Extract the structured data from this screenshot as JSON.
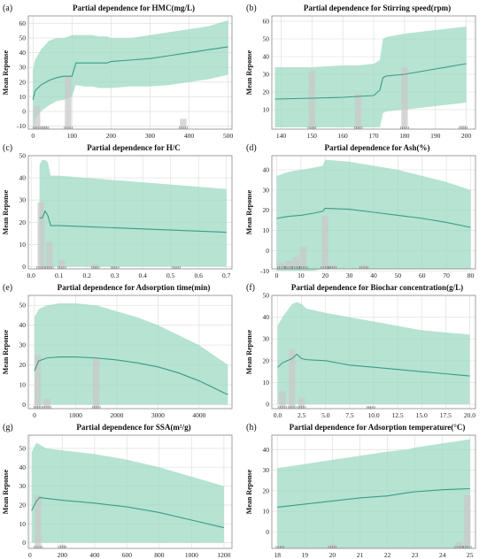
{
  "figure": {
    "panels": [
      {
        "letter": "(a)",
        "title": "Partial dependence for HMC(mg/L)"
      },
      {
        "letter": "(b)",
        "title": "Partial dependence for Stirring speed(rpm)"
      },
      {
        "letter": "(c)",
        "title": "Partial dependence for H/C"
      },
      {
        "letter": "(d)",
        "title": "Partial dependence for Ash(%)"
      },
      {
        "letter": "(e)",
        "title": "Partial dependence for Adsorption time(min)"
      },
      {
        "letter": "(f)",
        "title": "Partial dependence for Biochar concentration(g/L)"
      },
      {
        "letter": "(g)",
        "title": "Partial dependence for SSA(m²/g)"
      },
      {
        "letter": "(h)",
        "title": "Partial dependence for Adsorption temperature(°C)"
      }
    ],
    "y_axis_label": "Mean Reponse",
    "colors": {
      "band": "#9ed9c3",
      "line": "#3a9c88",
      "bar": "#c9c9c9",
      "bar_dark": "#b9b9b9",
      "grid": "#e4e4e4"
    }
  },
  "chart_data": [
    {
      "type": "line",
      "title": "Partial dependence for HMC(mg/L)",
      "ylabel": "Mean Reponse",
      "xlim": [
        -12,
        510
      ],
      "ylim": [
        -12,
        65
      ],
      "xticks": [
        "0",
        "100",
        "200",
        "300",
        "400",
        "500"
      ],
      "yticks": [
        "-10",
        "0",
        "10",
        "20",
        "30",
        "40",
        "50",
        "60"
      ],
      "x": [
        0,
        5,
        20,
        40,
        60,
        80,
        100,
        110,
        130,
        150,
        170,
        190,
        200,
        250,
        300,
        350,
        400,
        450,
        500
      ],
      "y": [
        8,
        14,
        18,
        21,
        23,
        24,
        24,
        33,
        33,
        33,
        33,
        33,
        34,
        35,
        36,
        38,
        40,
        42,
        44
      ],
      "lower": [
        -12,
        -5,
        0,
        4,
        7,
        8,
        10,
        18,
        17,
        17,
        16,
        16,
        16,
        17,
        17,
        18,
        20,
        22,
        25
      ],
      "upper": [
        28,
        35,
        42,
        48,
        50,
        50,
        52,
        52,
        52,
        52,
        51,
        51,
        50,
        50,
        52,
        54,
        56,
        58,
        62
      ],
      "bars": [
        {
          "x": 10,
          "h": 16
        },
        {
          "x": 30,
          "h": 2
        },
        {
          "x": 90,
          "h": 36
        },
        {
          "x": 385,
          "h": 7
        }
      ]
    },
    {
      "type": "line",
      "title": "Partial dependence for Stirring speed(rpm)",
      "ylabel": "Mean Reponse",
      "xlim": [
        137,
        203
      ],
      "ylim": [
        -1,
        63
      ],
      "xticks": [
        "140",
        "150",
        "160",
        "170",
        "180",
        "190",
        "200"
      ],
      "yticks": [
        "10",
        "20",
        "30",
        "40",
        "50",
        "60"
      ],
      "x": [
        138,
        150,
        160,
        165,
        170,
        172,
        173,
        174,
        180,
        190,
        200
      ],
      "y": [
        16,
        16.5,
        17,
        17.5,
        18,
        21,
        28,
        29,
        30,
        33,
        36
      ],
      "lower": [
        0,
        0,
        0,
        0,
        0,
        0,
        8,
        9,
        10,
        12,
        14
      ],
      "upper": [
        34,
        34,
        35,
        35,
        36,
        38,
        50,
        51,
        53,
        55,
        57
      ],
      "bars": [
        {
          "x": 150,
          "h": 33
        },
        {
          "x": 165,
          "h": 20
        },
        {
          "x": 180,
          "h": 35
        },
        {
          "x": 199,
          "h": 2
        }
      ]
    },
    {
      "type": "line",
      "title": "Partial dependence for H/C",
      "ylabel": "Mean Reponse",
      "xlim": [
        -0.01,
        0.72
      ],
      "ylim": [
        -1,
        50
      ],
      "xticks": [
        "0.0",
        "0.1",
        "0.2",
        "0.3",
        "0.4",
        "0.5",
        "0.6",
        "0.7"
      ],
      "yticks": [
        "0",
        "10",
        "20",
        "30",
        "40",
        "50"
      ],
      "x": [
        0.03,
        0.04,
        0.05,
        0.06,
        0.07,
        0.1,
        0.2,
        0.3,
        0.4,
        0.5,
        0.6,
        0.7
      ],
      "y": [
        22,
        22,
        25,
        23,
        18.5,
        18.5,
        18,
        17.5,
        17,
        16.5,
        16,
        15.5
      ],
      "lower": [
        0,
        0,
        0,
        0,
        0,
        0,
        0,
        0,
        0,
        0,
        0,
        0
      ],
      "upper": [
        46,
        48,
        48,
        47,
        41,
        41,
        40,
        39,
        38,
        37,
        36,
        35
      ],
      "bars": [
        {
          "x": 0.035,
          "h": 30
        },
        {
          "x": 0.065,
          "h": 12
        },
        {
          "x": 0.11,
          "h": 4
        },
        {
          "x": 0.23,
          "h": 2
        },
        {
          "x": 0.3,
          "h": 1
        },
        {
          "x": 0.52,
          "h": 1
        }
      ]
    },
    {
      "type": "line",
      "title": "Partial dependence for Ash(%)",
      "ylabel": "Mean Reponse",
      "xlim": [
        -2,
        82
      ],
      "ylim": [
        -9,
        47
      ],
      "xticks": [
        "0",
        "10",
        "20",
        "30",
        "40",
        "50",
        "60",
        "70",
        "80"
      ],
      "yticks": [
        "-10",
        "0",
        "10",
        "20",
        "30",
        "40"
      ],
      "x": [
        0,
        5,
        10,
        15,
        19,
        20,
        30,
        40,
        50,
        60,
        70,
        80
      ],
      "y": [
        16,
        17,
        17.5,
        18.5,
        19.5,
        21,
        20.5,
        19,
        17.5,
        16,
        14,
        11.5
      ],
      "lower": [
        -10,
        -10,
        -10,
        -10,
        -9,
        -9,
        -9,
        -9,
        -9,
        -9,
        -9,
        -9
      ],
      "upper": [
        37,
        39,
        40,
        41,
        42,
        45,
        44,
        42,
        40,
        37,
        34,
        30
      ],
      "bars": [
        {
          "x": 2,
          "h": 3
        },
        {
          "x": 5,
          "h": 4
        },
        {
          "x": 8,
          "h": 6
        },
        {
          "x": 11,
          "h": 11
        },
        {
          "x": 20,
          "h": 26
        },
        {
          "x": 23,
          "h": 2
        },
        {
          "x": 36,
          "h": 2
        }
      ]
    },
    {
      "type": "line",
      "title": "Partial dependence for Adsorption time(min)",
      "ylabel": "Mean Reponse",
      "xlim": [
        -150,
        4800
      ],
      "ylim": [
        -2,
        55
      ],
      "xticks": [
        "0",
        "1000",
        "2000",
        "3000",
        "4000"
      ],
      "yticks": [
        "0",
        "10",
        "20",
        "30",
        "40",
        "50"
      ],
      "x": [
        0,
        100,
        300,
        600,
        1000,
        1500,
        2000,
        2500,
        3000,
        3500,
        4000,
        4700
      ],
      "y": [
        17,
        22,
        23.5,
        24,
        24,
        23.5,
        22.5,
        21,
        19,
        16,
        12,
        5
      ],
      "lower": [
        0,
        0,
        0,
        0,
        0,
        0,
        0,
        0,
        0,
        0,
        0,
        0
      ],
      "upper": [
        44,
        48,
        50,
        51,
        51,
        50,
        47,
        44,
        40,
        35,
        30,
        20
      ],
      "bars": [
        {
          "x": 80,
          "h": 27
        },
        {
          "x": 300,
          "h": 5
        },
        {
          "x": 1500,
          "h": 26
        }
      ]
    },
    {
      "type": "line",
      "title": "Partial dependence for Biochar concentration(g/L)",
      "ylabel": "Mean Reponse",
      "xlim": [
        -0.6,
        20.6
      ],
      "ylim": [
        -2,
        50
      ],
      "xticks": [
        "0.0",
        "2.5",
        "5.0",
        "7.5",
        "10.0",
        "12.5",
        "15.0",
        "17.5",
        "20.0"
      ],
      "yticks": [
        "0",
        "10",
        "20",
        "30",
        "40",
        "50"
      ],
      "x": [
        0,
        0.5,
        1,
        1.5,
        2,
        2.5,
        3,
        5,
        7.5,
        10,
        12.5,
        15,
        17.5,
        20
      ],
      "y": [
        17,
        19,
        20,
        21,
        23,
        21,
        20.5,
        20,
        18,
        17,
        16,
        15,
        14,
        13
      ],
      "lower": [
        0,
        0,
        0,
        0,
        0,
        0,
        0,
        0,
        0,
        0,
        0,
        0,
        0,
        0
      ],
      "upper": [
        36,
        40,
        43,
        46,
        47,
        46,
        44,
        42,
        40,
        38,
        36,
        34,
        33,
        32
      ],
      "bars": [
        {
          "x": 0.5,
          "h": 8
        },
        {
          "x": 1.5,
          "h": 27
        },
        {
          "x": 2.5,
          "h": 5
        },
        {
          "x": 9.7,
          "h": 1
        }
      ]
    },
    {
      "type": "line",
      "title": "Partial dependence for SSA(m²/g)",
      "ylabel": "Mean Reponse",
      "xlim": [
        -10,
        1250
      ],
      "ylim": [
        -3,
        57
      ],
      "xticks": [
        "0",
        "200",
        "400",
        "600",
        "800",
        "1000",
        "1200"
      ],
      "yticks": [
        "0",
        "10",
        "20",
        "30",
        "40",
        "50"
      ],
      "x": [
        10,
        40,
        60,
        100,
        200,
        400,
        600,
        800,
        1000,
        1200
      ],
      "y": [
        17,
        22,
        24,
        23.5,
        22.5,
        21,
        19,
        16,
        12,
        8
      ],
      "lower": [
        0,
        0,
        0,
        0,
        0,
        0,
        0,
        0,
        0,
        0
      ],
      "upper": [
        48,
        53,
        52,
        50,
        49,
        47,
        44,
        40,
        35,
        30
      ],
      "bars": [
        {
          "x": 50,
          "h": 28
        },
        {
          "x": 200,
          "h": 2
        }
      ]
    },
    {
      "type": "line",
      "title": "Partial dependence for Adsorption temperature(°C)",
      "ylabel": "Mean Reponse",
      "xlim": [
        17.8,
        25.2
      ],
      "ylim": [
        -8,
        47
      ],
      "xticks": [
        "18",
        "19",
        "20",
        "21",
        "22",
        "23",
        "24",
        "25"
      ],
      "yticks": [
        "0",
        "10",
        "20",
        "30",
        "40"
      ],
      "x": [
        18,
        19,
        20,
        21,
        22,
        22.7,
        23,
        24,
        25
      ],
      "y": [
        12,
        13.5,
        15,
        16.5,
        17.5,
        19,
        19.5,
        20.5,
        21
      ],
      "lower": [
        -8,
        -8,
        -8,
        -8,
        -8,
        -8,
        -8,
        -8,
        -8
      ],
      "upper": [
        31,
        33,
        35,
        37,
        39,
        40,
        41,
        43,
        45
      ],
      "bars": [
        {
          "x": 18.1,
          "h": 1
        },
        {
          "x": 20,
          "h": 2
        },
        {
          "x": 24.6,
          "h": 3
        },
        {
          "x": 24.9,
          "h": 26
        }
      ]
    }
  ]
}
